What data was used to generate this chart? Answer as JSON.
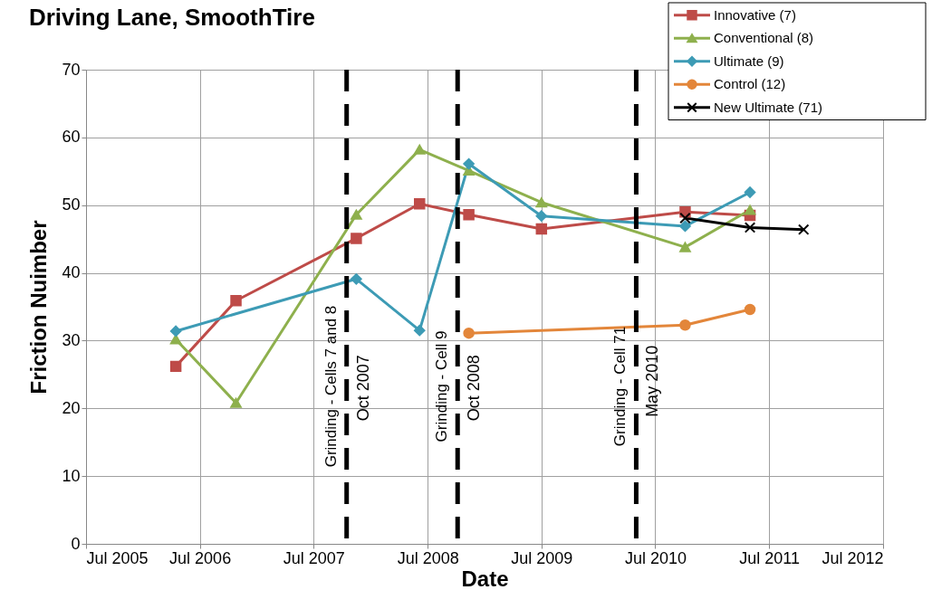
{
  "chart_data": {
    "type": "line",
    "title": "Driving Lane, SmoothTire",
    "xlabel": "Date",
    "ylabel": "Friction Nuimber",
    "xlim": [
      "2005-07-01",
      "2012-07-01"
    ],
    "xticks": [
      {
        "value": "2005-07-01",
        "label": "Jul 2005"
      },
      {
        "value": "2006-07-01",
        "label": "Jul 2006"
      },
      {
        "value": "2007-07-01",
        "label": "Jul 2007"
      },
      {
        "value": "2008-07-01",
        "label": "Jul 2008"
      },
      {
        "value": "2009-07-01",
        "label": "Jul 2009"
      },
      {
        "value": "2010-07-01",
        "label": "Jul 2010"
      },
      {
        "value": "2011-07-01",
        "label": "Jul 2011"
      },
      {
        "value": "2012-07-01",
        "label": "Jul 2012"
      }
    ],
    "ylim": [
      0,
      70
    ],
    "yticks": [
      0,
      10,
      20,
      30,
      40,
      50,
      60,
      70
    ],
    "grid": true,
    "legend": "top right",
    "line_style": "solid",
    "series": [
      {
        "name": "Innovative (7)",
        "color": "#be4b48",
        "marker": "square",
        "x": [
          "2006-04-15",
          "2006-10-25",
          "2007-11-15",
          "2008-06-05",
          "2008-11-10",
          "2009-07-01",
          "2010-10-05",
          "2011-05-01"
        ],
        "values": [
          26.2,
          35.9,
          45.1,
          50.2,
          48.6,
          46.5,
          49.0,
          48.5
        ]
      },
      {
        "name": "Conventional (8)",
        "color": "#8eb04d",
        "marker": "triangle",
        "x": [
          "2006-04-15",
          "2006-10-25",
          "2007-11-15",
          "2008-06-05",
          "2008-11-10",
          "2009-07-01",
          "2010-10-05",
          "2011-05-01"
        ],
        "values": [
          30.2,
          20.8,
          48.6,
          58.2,
          55.1,
          50.4,
          43.8,
          49.3
        ]
      },
      {
        "name": "Ultimate (9)",
        "color": "#3d9bb5",
        "marker": "diamond",
        "x": [
          "2006-04-15",
          "2007-11-15",
          "2008-06-05",
          "2008-11-10",
          "2009-07-01",
          "2010-10-05",
          "2011-05-01"
        ],
        "values": [
          31.4,
          39.1,
          31.5,
          56.1,
          48.4,
          46.9,
          51.9
        ]
      },
      {
        "name": "Control (12)",
        "color": "#e3863a",
        "marker": "circle",
        "x": [
          "2008-11-10",
          "2010-10-05",
          "2011-05-01"
        ],
        "values": [
          31.1,
          32.3,
          34.6
        ]
      },
      {
        "name": "New Ultimate (71)",
        "color": "#000000",
        "marker": "cross",
        "x": [
          "2010-10-05",
          "2011-05-01",
          "2011-10-20"
        ],
        "values": [
          48.1,
          46.7,
          46.4
        ]
      }
    ],
    "ref_lines": [
      {
        "axis": "x",
        "value": "2007-10-15",
        "label": "Grinding - Cells 7 and 8",
        "color": "#000000",
        "line_style": "dashed"
      },
      {
        "axis": "x",
        "value": "2008-10-05",
        "label": "Grinding - Cell 9",
        "color": "#000000",
        "line_style": "dashed"
      },
      {
        "axis": "x",
        "value": "2010-05-01",
        "label": "Grinding - Cell 71",
        "color": "#000000",
        "line_style": "dashed"
      }
    ],
    "annotations": [
      {
        "text": "Oct 2007",
        "x": "2007-10-15",
        "y": 23
      },
      {
        "text": "Oct 2008",
        "x": "2008-10-05",
        "y": 23
      },
      {
        "text": "May 2010",
        "x": "2010-05-01",
        "y": 24
      }
    ]
  }
}
